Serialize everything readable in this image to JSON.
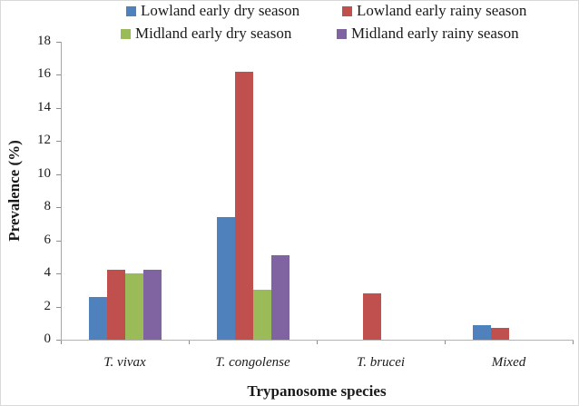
{
  "chart_data": {
    "type": "bar",
    "categories": [
      "T. vivax",
      "T. congolense",
      "T. brucei",
      "Mixed"
    ],
    "series": [
      {
        "name": "Lowland early dry season",
        "color": "#4F81BD",
        "values": [
          2.6,
          7.4,
          0,
          0.9
        ]
      },
      {
        "name": "Lowland early rainy season",
        "color": "#C0504D",
        "values": [
          4.2,
          16.2,
          2.8,
          0.7
        ]
      },
      {
        "name": "Midland early dry season",
        "color": "#9BBB59",
        "values": [
          4.0,
          3.0,
          0,
          0
        ]
      },
      {
        "name": "Midland early rainy season",
        "color": "#8064A2",
        "values": [
          4.2,
          5.1,
          0,
          0
        ]
      }
    ],
    "title": "",
    "xlabel": "Trypanosome species",
    "ylabel": "Prevalence (%)",
    "ylim": [
      0,
      18
    ],
    "ytick_step": 2,
    "yticks": [
      0,
      2,
      4,
      6,
      8,
      10,
      12,
      14,
      16,
      18
    ],
    "grid": false,
    "legend_position": "top"
  }
}
